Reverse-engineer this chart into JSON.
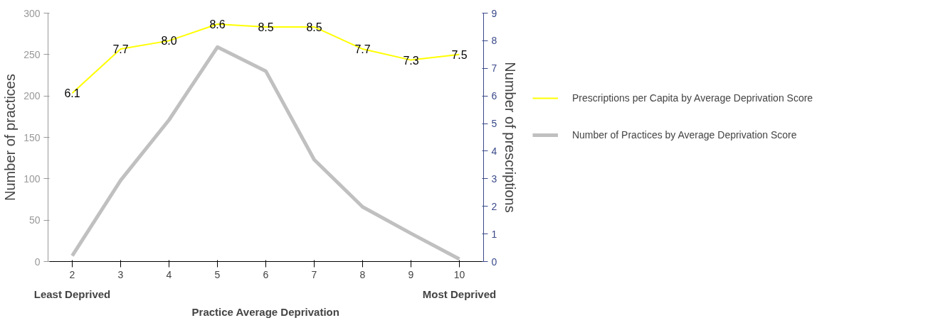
{
  "chart_data": {
    "type": "line",
    "xlabel": "Practice Average Deprivation",
    "ylabel": "Number of practices",
    "y2label": "Number of prescriptions",
    "categories": [
      "2",
      "3",
      "4",
      "5",
      "6",
      "7",
      "8",
      "9",
      "10"
    ],
    "series": [
      {
        "name": "Prescriptions per Capita by Average Deprivation Score",
        "color": "#ffff00",
        "axis": "y2",
        "value_labels": [
          "6.1",
          "7.7",
          "8.0",
          "8.6",
          "8.5",
          "8.5",
          "7.7",
          "7.3",
          "7.5"
        ],
        "values": [
          6.1,
          7.7,
          8.0,
          8.6,
          8.5,
          8.5,
          7.7,
          7.3,
          7.5
        ]
      },
      {
        "name": "Number of Practices by Average Deprivation Score",
        "color": "#c0c0c0",
        "axis": "y",
        "values": [
          7,
          98,
          171,
          259,
          230,
          123,
          66,
          34,
          3
        ]
      }
    ],
    "ylim": [
      0,
      300
    ],
    "yticks": [
      0,
      50,
      100,
      150,
      200,
      250,
      300
    ],
    "y2lim": [
      0,
      9
    ],
    "y2ticks": [
      0,
      1,
      2,
      3,
      4,
      5,
      6,
      7,
      8,
      9
    ],
    "annotations": [
      "Least Deprived",
      "Most Deprived"
    ],
    "grid": false,
    "legend": "right"
  }
}
